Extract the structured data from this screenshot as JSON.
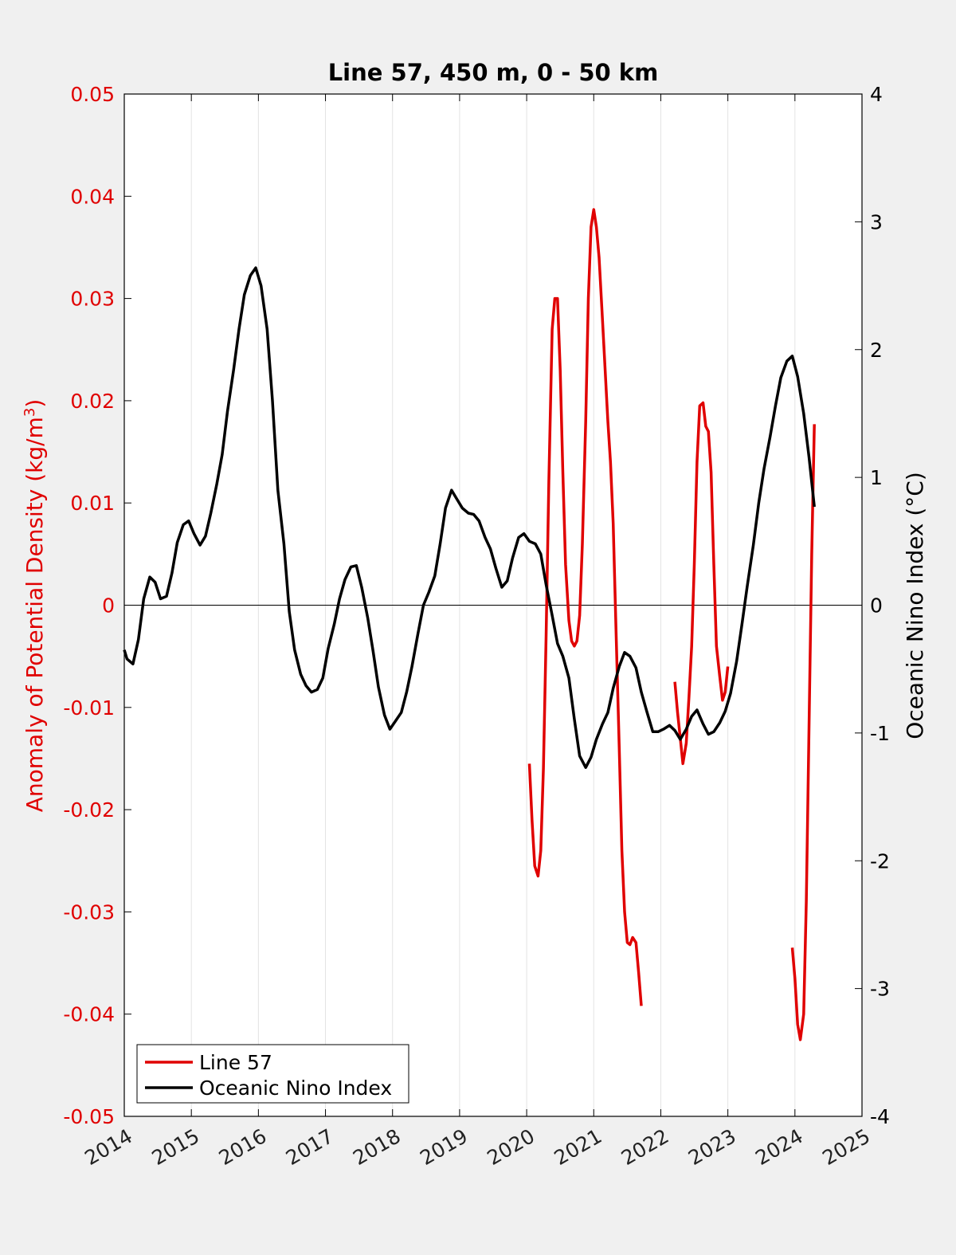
{
  "chart_data": {
    "type": "line",
    "title": "Line 57, 450 m, 0 - 50 km",
    "ylabel_left": "Anomaly of Potential Density (kg/m",
    "ylabel_left_sup": "3",
    "ylabel_left_close": ")",
    "ylabel_right": "Oceanic Nino Index (°C)",
    "xlim": [
      2014,
      2025
    ],
    "ylim_left": [
      -0.05,
      0.05
    ],
    "ylim_right": [
      -4,
      4
    ],
    "xgrid": true,
    "ygrid": false,
    "legend_location": "bottom-left",
    "x_ticks": [
      "2014",
      "2015",
      "2016",
      "2017",
      "2018",
      "2019",
      "2020",
      "2021",
      "2022",
      "2023",
      "2024",
      "2025"
    ],
    "y_left_ticks": [
      {
        "v": 0.05,
        "label": "0.05"
      },
      {
        "v": 0.04,
        "label": "0.04"
      },
      {
        "v": 0.03,
        "label": "0.03"
      },
      {
        "v": 0.02,
        "label": "0.02"
      },
      {
        "v": 0.01,
        "label": "0.01"
      },
      {
        "v": 0,
        "label": "0"
      },
      {
        "v": -0.01,
        "label": "-0.01"
      },
      {
        "v": -0.02,
        "label": "-0.02"
      },
      {
        "v": -0.03,
        "label": "-0.03"
      },
      {
        "v": -0.04,
        "label": "-0.04"
      },
      {
        "v": -0.05,
        "label": "-0.05"
      }
    ],
    "y_right_ticks": [
      {
        "v": 4,
        "label": "4"
      },
      {
        "v": 3,
        "label": "3"
      },
      {
        "v": 2,
        "label": "2"
      },
      {
        "v": 1,
        "label": "1"
      },
      {
        "v": 0,
        "label": "0"
      },
      {
        "v": -1,
        "label": "-1"
      },
      {
        "v": -2,
        "label": "-2"
      },
      {
        "v": -3,
        "label": "-3"
      },
      {
        "v": -4,
        "label": "-4"
      }
    ],
    "series": [
      {
        "name": "Line 57",
        "axis": "left",
        "color": "#e00000",
        "segments": [
          [
            [
              2020.04,
              -0.0155
            ],
            [
              2020.08,
              -0.021
            ],
            [
              2020.12,
              -0.0255
            ],
            [
              2020.17,
              -0.0265
            ],
            [
              2020.21,
              -0.024
            ],
            [
              2020.25,
              -0.016
            ],
            [
              2020.29,
              -0.003
            ],
            [
              2020.33,
              0.012
            ],
            [
              2020.38,
              0.027
            ],
            [
              2020.42,
              0.03
            ],
            [
              2020.46,
              0.03
            ],
            [
              2020.5,
              0.023
            ],
            [
              2020.54,
              0.013
            ],
            [
              2020.58,
              0.004
            ],
            [
              2020.63,
              -0.0015
            ],
            [
              2020.67,
              -0.0035
            ],
            [
              2020.71,
              -0.004
            ],
            [
              2020.75,
              -0.0035
            ],
            [
              2020.79,
              -0.001
            ],
            [
              2020.83,
              0.006
            ],
            [
              2020.88,
              0.018
            ],
            [
              2020.92,
              0.03
            ],
            [
              2020.96,
              0.037
            ],
            [
              2021.0,
              0.0387
            ],
            [
              2021.04,
              0.037
            ],
            [
              2021.08,
              0.034
            ],
            [
              2021.13,
              0.028
            ],
            [
              2021.17,
              0.023
            ],
            [
              2021.21,
              0.018
            ],
            [
              2021.25,
              0.014
            ],
            [
              2021.29,
              0.008
            ],
            [
              2021.33,
              -0.002
            ],
            [
              2021.38,
              -0.014
            ],
            [
              2021.42,
              -0.024
            ],
            [
              2021.46,
              -0.03
            ],
            [
              2021.5,
              -0.033
            ],
            [
              2021.54,
              -0.0332
            ],
            [
              2021.58,
              -0.0325
            ],
            [
              2021.63,
              -0.033
            ],
            [
              2021.67,
              -0.036
            ],
            [
              2021.71,
              -0.0392
            ]
          ],
          [
            [
              2022.21,
              -0.0075
            ],
            [
              2022.25,
              -0.0105
            ],
            [
              2022.29,
              -0.013
            ],
            [
              2022.33,
              -0.0155
            ],
            [
              2022.38,
              -0.0135
            ],
            [
              2022.42,
              -0.009
            ],
            [
              2022.46,
              -0.004
            ],
            [
              2022.5,
              0.004
            ],
            [
              2022.54,
              0.014
            ],
            [
              2022.58,
              0.0195
            ],
            [
              2022.63,
              0.0198
            ],
            [
              2022.67,
              0.0175
            ],
            [
              2022.71,
              0.017
            ],
            [
              2022.75,
              0.013
            ],
            [
              2022.79,
              0.004
            ],
            [
              2022.83,
              -0.004
            ],
            [
              2022.88,
              -0.007
            ],
            [
              2022.92,
              -0.0093
            ],
            [
              2022.96,
              -0.0085
            ],
            [
              2023.0,
              -0.006
            ]
          ],
          [
            [
              2023.96,
              -0.0335
            ],
            [
              2024.0,
              -0.0365
            ],
            [
              2024.04,
              -0.041
            ],
            [
              2024.08,
              -0.0425
            ],
            [
              2024.13,
              -0.04
            ],
            [
              2024.17,
              -0.029
            ],
            [
              2024.21,
              -0.012
            ],
            [
              2024.25,
              0.005
            ],
            [
              2024.29,
              0.0177
            ]
          ]
        ]
      },
      {
        "name": "Oceanic Nino Index",
        "axis": "right",
        "color": "#000000",
        "segments": [
          [
            [
              2014.0,
              -0.35
            ],
            [
              2014.04,
              -0.42
            ],
            [
              2014.13,
              -0.46
            ],
            [
              2014.21,
              -0.27
            ],
            [
              2014.29,
              0.05
            ],
            [
              2014.38,
              0.22
            ],
            [
              2014.46,
              0.18
            ],
            [
              2014.54,
              0.05
            ],
            [
              2014.63,
              0.07
            ],
            [
              2014.71,
              0.25
            ],
            [
              2014.79,
              0.49
            ],
            [
              2014.88,
              0.63
            ],
            [
              2014.96,
              0.66
            ],
            [
              2015.04,
              0.56
            ],
            [
              2015.13,
              0.47
            ],
            [
              2015.21,
              0.54
            ],
            [
              2015.29,
              0.72
            ],
            [
              2015.38,
              0.95
            ],
            [
              2015.46,
              1.18
            ],
            [
              2015.54,
              1.52
            ],
            [
              2015.63,
              1.84
            ],
            [
              2015.71,
              2.16
            ],
            [
              2015.79,
              2.43
            ],
            [
              2015.88,
              2.58
            ],
            [
              2015.96,
              2.64
            ],
            [
              2016.04,
              2.5
            ],
            [
              2016.13,
              2.16
            ],
            [
              2016.21,
              1.6
            ],
            [
              2016.29,
              0.9
            ],
            [
              2016.38,
              0.48
            ],
            [
              2016.46,
              -0.05
            ],
            [
              2016.54,
              -0.35
            ],
            [
              2016.63,
              -0.54
            ],
            [
              2016.71,
              -0.63
            ],
            [
              2016.79,
              -0.68
            ],
            [
              2016.88,
              -0.66
            ],
            [
              2016.96,
              -0.57
            ],
            [
              2017.04,
              -0.34
            ],
            [
              2017.13,
              -0.15
            ],
            [
              2017.21,
              0.05
            ],
            [
              2017.29,
              0.2
            ],
            [
              2017.38,
              0.3
            ],
            [
              2017.46,
              0.31
            ],
            [
              2017.54,
              0.14
            ],
            [
              2017.63,
              -0.1
            ],
            [
              2017.71,
              -0.36
            ],
            [
              2017.79,
              -0.64
            ],
            [
              2017.88,
              -0.86
            ],
            [
              2017.96,
              -0.97
            ],
            [
              2018.04,
              -0.91
            ],
            [
              2018.13,
              -0.84
            ],
            [
              2018.21,
              -0.68
            ],
            [
              2018.29,
              -0.48
            ],
            [
              2018.38,
              -0.22
            ],
            [
              2018.46,
              0.0
            ],
            [
              2018.54,
              0.1
            ],
            [
              2018.63,
              0.23
            ],
            [
              2018.71,
              0.48
            ],
            [
              2018.79,
              0.76
            ],
            [
              2018.88,
              0.9
            ],
            [
              2018.96,
              0.83
            ],
            [
              2019.04,
              0.76
            ],
            [
              2019.13,
              0.72
            ],
            [
              2019.21,
              0.71
            ],
            [
              2019.29,
              0.66
            ],
            [
              2019.38,
              0.53
            ],
            [
              2019.46,
              0.44
            ],
            [
              2019.54,
              0.29
            ],
            [
              2019.63,
              0.14
            ],
            [
              2019.71,
              0.19
            ],
            [
              2019.79,
              0.37
            ],
            [
              2019.88,
              0.53
            ],
            [
              2019.96,
              0.56
            ],
            [
              2020.04,
              0.5
            ],
            [
              2020.13,
              0.48
            ],
            [
              2020.21,
              0.4
            ],
            [
              2020.29,
              0.16
            ],
            [
              2020.38,
              -0.08
            ],
            [
              2020.46,
              -0.3
            ],
            [
              2020.54,
              -0.4
            ],
            [
              2020.63,
              -0.57
            ],
            [
              2020.71,
              -0.89
            ],
            [
              2020.79,
              -1.18
            ],
            [
              2020.88,
              -1.27
            ],
            [
              2020.96,
              -1.19
            ],
            [
              2021.04,
              -1.05
            ],
            [
              2021.13,
              -0.93
            ],
            [
              2021.21,
              -0.84
            ],
            [
              2021.29,
              -0.65
            ],
            [
              2021.38,
              -0.48
            ],
            [
              2021.46,
              -0.37
            ],
            [
              2021.54,
              -0.4
            ],
            [
              2021.63,
              -0.49
            ],
            [
              2021.71,
              -0.68
            ],
            [
              2021.79,
              -0.83
            ],
            [
              2021.88,
              -0.99
            ],
            [
              2021.96,
              -0.99
            ],
            [
              2022.04,
              -0.97
            ],
            [
              2022.13,
              -0.94
            ],
            [
              2022.21,
              -0.98
            ],
            [
              2022.29,
              -1.05
            ],
            [
              2022.38,
              -0.97
            ],
            [
              2022.46,
              -0.87
            ],
            [
              2022.54,
              -0.82
            ],
            [
              2022.63,
              -0.93
            ],
            [
              2022.71,
              -1.01
            ],
            [
              2022.79,
              -0.99
            ],
            [
              2022.88,
              -0.92
            ],
            [
              2022.96,
              -0.83
            ],
            [
              2023.04,
              -0.69
            ],
            [
              2023.13,
              -0.44
            ],
            [
              2023.21,
              -0.15
            ],
            [
              2023.29,
              0.15
            ],
            [
              2023.38,
              0.47
            ],
            [
              2023.46,
              0.8
            ],
            [
              2023.54,
              1.07
            ],
            [
              2023.63,
              1.32
            ],
            [
              2023.71,
              1.56
            ],
            [
              2023.79,
              1.78
            ],
            [
              2023.88,
              1.91
            ],
            [
              2023.96,
              1.95
            ],
            [
              2024.04,
              1.79
            ],
            [
              2024.13,
              1.5
            ],
            [
              2024.21,
              1.16
            ],
            [
              2024.29,
              0.77
            ]
          ]
        ]
      }
    ]
  }
}
